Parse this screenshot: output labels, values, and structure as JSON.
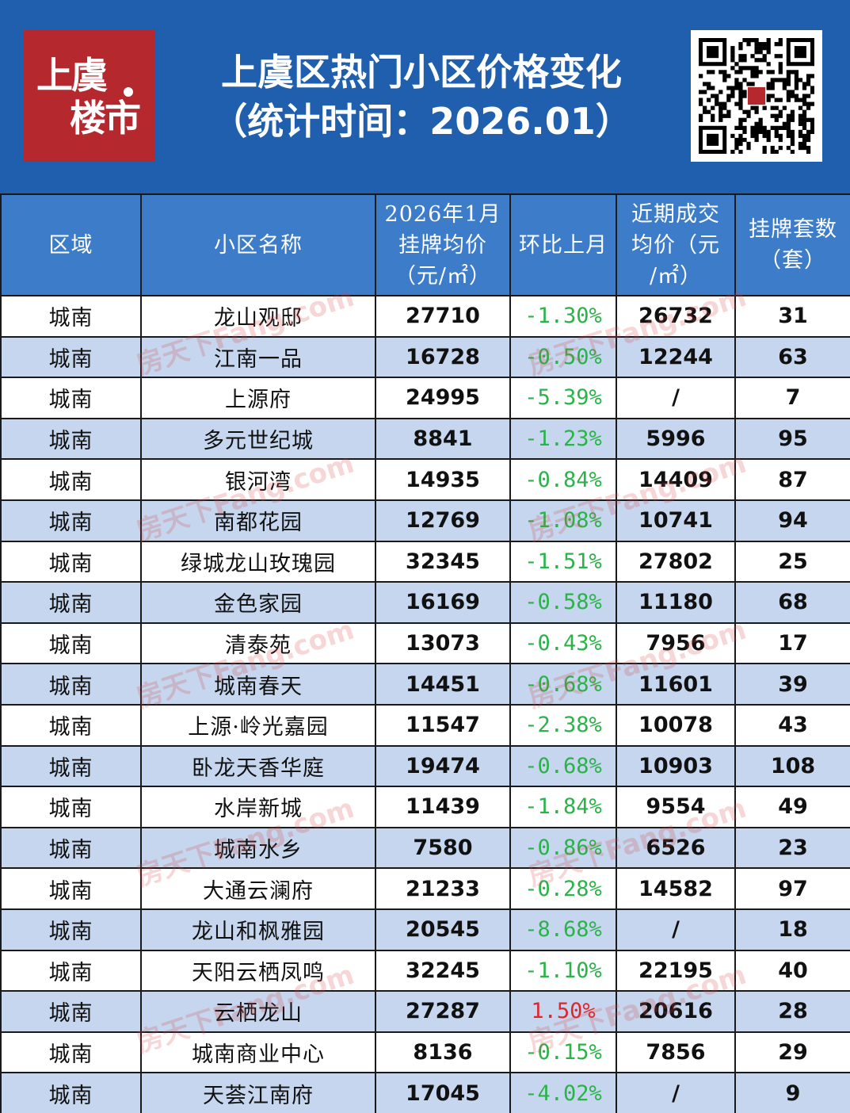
{
  "header": {
    "logo": {
      "line1": "上虞",
      "line2": "楼市"
    },
    "title_line1": "上虞区热门小区价格变化",
    "title_line2": "（统计时间：2026.01）",
    "qr_code_icon": "qr-code-icon"
  },
  "table": {
    "headers": {
      "district": "区域",
      "name": "小区名称",
      "listing_price": [
        "2026年1月",
        "挂牌均价",
        "（元/㎡）"
      ],
      "mom": "环比上月",
      "deal_price": [
        "近期成交",
        "均价（元",
        "/㎡）"
      ],
      "listings": [
        "挂牌套数",
        "（套）"
      ]
    },
    "rows": [
      {
        "district": "城南",
        "name": "龙山观邸",
        "price": "27710",
        "change": "-1.30%",
        "deal": "26732",
        "count": "31"
      },
      {
        "district": "城南",
        "name": "江南一品",
        "price": "16728",
        "change": "-0.50%",
        "deal": "12244",
        "count": "63"
      },
      {
        "district": "城南",
        "name": "上源府",
        "price": "24995",
        "change": "-5.39%",
        "deal": "/",
        "count": "7"
      },
      {
        "district": "城南",
        "name": "多元世纪城",
        "price": "8841",
        "change": "-1.23%",
        "deal": "5996",
        "count": "95"
      },
      {
        "district": "城南",
        "name": "银河湾",
        "price": "14935",
        "change": "-0.84%",
        "deal": "14409",
        "count": "87"
      },
      {
        "district": "城南",
        "name": "南都花园",
        "price": "12769",
        "change": "-1.08%",
        "deal": "10741",
        "count": "94"
      },
      {
        "district": "城南",
        "name": "绿城龙山玫瑰园",
        "price": "32345",
        "change": "-1.51%",
        "deal": "27802",
        "count": "25"
      },
      {
        "district": "城南",
        "name": "金色家园",
        "price": "16169",
        "change": "-0.58%",
        "deal": "11180",
        "count": "68"
      },
      {
        "district": "城南",
        "name": "清泰苑",
        "price": "13073",
        "change": "-0.43%",
        "deal": "7956",
        "count": "17"
      },
      {
        "district": "城南",
        "name": "城南春天",
        "price": "14451",
        "change": "-0.68%",
        "deal": "11601",
        "count": "39"
      },
      {
        "district": "城南",
        "name": "上源·岭光嘉园",
        "price": "11547",
        "change": "-2.38%",
        "deal": "10078",
        "count": "43"
      },
      {
        "district": "城南",
        "name": "卧龙天香华庭",
        "price": "19474",
        "change": "-0.68%",
        "deal": "10903",
        "count": "108"
      },
      {
        "district": "城南",
        "name": "水岸新城",
        "price": "11439",
        "change": "-1.84%",
        "deal": "9554",
        "count": "49"
      },
      {
        "district": "城南",
        "name": "城南水乡",
        "price": "7580",
        "change": "-0.86%",
        "deal": "6526",
        "count": "23"
      },
      {
        "district": "城南",
        "name": "大通云澜府",
        "price": "21233",
        "change": "-0.28%",
        "deal": "14582",
        "count": "97"
      },
      {
        "district": "城南",
        "name": "龙山和枫雅园",
        "price": "20545",
        "change": "-8.68%",
        "deal": "/",
        "count": "18"
      },
      {
        "district": "城南",
        "name": "天阳云栖凤鸣",
        "price": "32245",
        "change": "-1.10%",
        "deal": "22195",
        "count": "40"
      },
      {
        "district": "城南",
        "name": "云栖龙山",
        "price": "27287",
        "change": "1.50%",
        "deal": "20616",
        "count": "28"
      },
      {
        "district": "城南",
        "name": "城南商业中心",
        "price": "8136",
        "change": "-0.15%",
        "deal": "7856",
        "count": "29"
      },
      {
        "district": "城南",
        "name": "天荟江南府",
        "price": "17045",
        "change": "-4.02%",
        "deal": "/",
        "count": "9"
      }
    ]
  },
  "watermark": "房天下Fang.com",
  "colors": {
    "header_bg": "#1f5fae",
    "table_header_bg": "#3d7cc9",
    "logo_bg": "#b5282e",
    "stripe": "#c5d6ee",
    "negative": "#2bb34a",
    "positive": "#e0262d"
  }
}
